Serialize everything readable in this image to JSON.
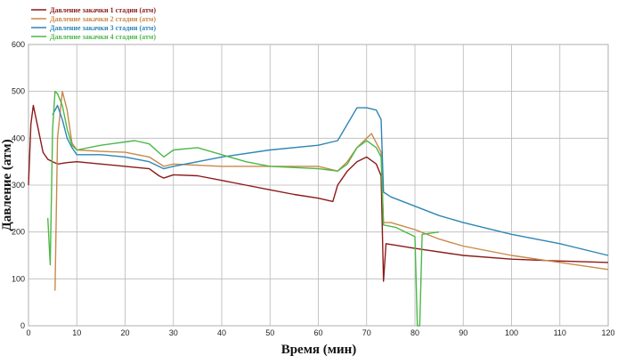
{
  "chart_data": {
    "type": "line",
    "xlabel": "Время (мин)",
    "ylabel": "Давление (атм)",
    "xlim": [
      0,
      120
    ],
    "ylim": [
      0,
      600
    ],
    "xticks": [
      0,
      10,
      20,
      30,
      40,
      50,
      60,
      70,
      80,
      90,
      100,
      110,
      120
    ],
    "yticks": [
      0,
      100,
      200,
      300,
      400,
      500,
      600
    ],
    "grid": true,
    "legend_position": "top-left",
    "series": [
      {
        "name": "Давление закачки 1 стадии (атм)",
        "color": "#8b1a1a",
        "points": [
          [
            0,
            300
          ],
          [
            0.5,
            430
          ],
          [
            1,
            470
          ],
          [
            2,
            420
          ],
          [
            3,
            370
          ],
          [
            4,
            355
          ],
          [
            5,
            350
          ],
          [
            6,
            345
          ],
          [
            8,
            348
          ],
          [
            10,
            350
          ],
          [
            15,
            345
          ],
          [
            20,
            340
          ],
          [
            25,
            335
          ],
          [
            27,
            320
          ],
          [
            28,
            315
          ],
          [
            30,
            322
          ],
          [
            35,
            320
          ],
          [
            40,
            310
          ],
          [
            45,
            300
          ],
          [
            50,
            290
          ],
          [
            55,
            280
          ],
          [
            60,
            272
          ],
          [
            63,
            265
          ],
          [
            64,
            300
          ],
          [
            66,
            330
          ],
          [
            68,
            350
          ],
          [
            70,
            360
          ],
          [
            72,
            345
          ],
          [
            73,
            320
          ],
          [
            73.5,
            95
          ],
          [
            74,
            175
          ],
          [
            80,
            165
          ],
          [
            90,
            150
          ],
          [
            100,
            142
          ],
          [
            110,
            138
          ],
          [
            120,
            135
          ]
        ]
      },
      {
        "name": "Давление закачки 2 стадии (атм)",
        "color": "#c8894a",
        "points": [
          [
            5.5,
            75
          ],
          [
            6,
            400
          ],
          [
            7,
            500
          ],
          [
            8,
            460
          ],
          [
            9,
            390
          ],
          [
            10,
            375
          ],
          [
            15,
            372
          ],
          [
            20,
            370
          ],
          [
            25,
            360
          ],
          [
            28,
            340
          ],
          [
            30,
            345
          ],
          [
            40,
            340
          ],
          [
            50,
            340
          ],
          [
            60,
            340
          ],
          [
            64,
            330
          ],
          [
            66,
            350
          ],
          [
            68,
            380
          ],
          [
            70,
            400
          ],
          [
            71,
            410
          ],
          [
            72,
            390
          ],
          [
            73,
            370
          ],
          [
            73.5,
            220
          ],
          [
            75,
            220
          ],
          [
            80,
            205
          ],
          [
            85,
            185
          ],
          [
            90,
            170
          ],
          [
            100,
            150
          ],
          [
            110,
            135
          ],
          [
            120,
            120
          ]
        ]
      },
      {
        "name": "Давление закачки 3 стадии (атм)",
        "color": "#2d86b5",
        "points": [
          [
            5,
            450
          ],
          [
            6,
            470
          ],
          [
            7,
            440
          ],
          [
            8,
            400
          ],
          [
            9,
            380
          ],
          [
            10,
            365
          ],
          [
            15,
            365
          ],
          [
            20,
            360
          ],
          [
            25,
            350
          ],
          [
            28,
            335
          ],
          [
            30,
            340
          ],
          [
            40,
            360
          ],
          [
            50,
            375
          ],
          [
            60,
            385
          ],
          [
            64,
            395
          ],
          [
            66,
            430
          ],
          [
            68,
            465
          ],
          [
            70,
            465
          ],
          [
            72,
            460
          ],
          [
            73,
            440
          ],
          [
            73.5,
            285
          ],
          [
            75,
            275
          ],
          [
            80,
            255
          ],
          [
            85,
            235
          ],
          [
            90,
            220
          ],
          [
            100,
            195
          ],
          [
            110,
            175
          ],
          [
            120,
            150
          ]
        ]
      },
      {
        "name": "Давление закачки 4 стадии (атм)",
        "color": "#4cb848",
        "points": [
          [
            4,
            230
          ],
          [
            4.5,
            130
          ],
          [
            5,
            420
          ],
          [
            5.5,
            500
          ],
          [
            6,
            495
          ],
          [
            7,
            470
          ],
          [
            8,
            420
          ],
          [
            9,
            385
          ],
          [
            10,
            375
          ],
          [
            15,
            385
          ],
          [
            20,
            392
          ],
          [
            22,
            395
          ],
          [
            25,
            388
          ],
          [
            28,
            360
          ],
          [
            30,
            375
          ],
          [
            35,
            380
          ],
          [
            40,
            365
          ],
          [
            45,
            350
          ],
          [
            50,
            340
          ],
          [
            60,
            335
          ],
          [
            64,
            330
          ],
          [
            66,
            345
          ],
          [
            68,
            380
          ],
          [
            70,
            395
          ],
          [
            72,
            380
          ],
          [
            73,
            360
          ],
          [
            73.5,
            215
          ],
          [
            76,
            210
          ],
          [
            78,
            200
          ],
          [
            80,
            190
          ],
          [
            80.5,
            0
          ],
          [
            81,
            0
          ],
          [
            81.5,
            195
          ],
          [
            85,
            200
          ]
        ]
      }
    ]
  }
}
